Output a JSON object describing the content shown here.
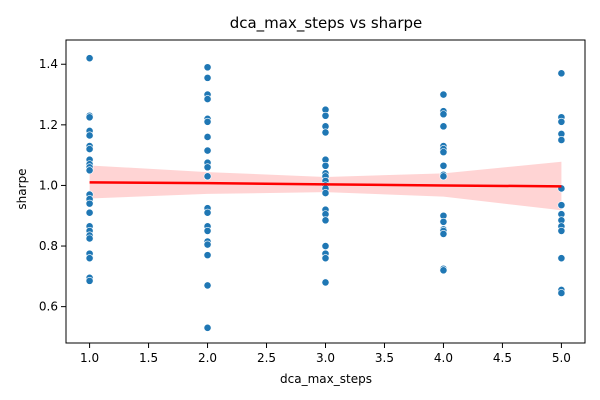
{
  "chart_data": {
    "type": "scatter",
    "title": "dca_max_steps vs sharpe",
    "xlabel": "dca_max_steps",
    "ylabel": "sharpe",
    "xlim": [
      0.8,
      5.2
    ],
    "ylim": [
      0.48,
      1.48
    ],
    "xticks": [
      "1.0",
      "1.5",
      "2.0",
      "2.5",
      "3.0",
      "3.5",
      "4.0",
      "4.5",
      "5.0"
    ],
    "yticks": [
      "0.6",
      "0.8",
      "1.0",
      "1.2",
      "1.4"
    ],
    "grid": false,
    "point_color": "#1f77b4",
    "points": [
      {
        "x": 1,
        "y": 1.42
      },
      {
        "x": 1,
        "y": 1.23
      },
      {
        "x": 1,
        "y": 1.225
      },
      {
        "x": 1,
        "y": 1.18
      },
      {
        "x": 1,
        "y": 1.165
      },
      {
        "x": 1,
        "y": 1.13
      },
      {
        "x": 1,
        "y": 1.12
      },
      {
        "x": 1,
        "y": 1.085
      },
      {
        "x": 1,
        "y": 1.07
      },
      {
        "x": 1,
        "y": 1.06
      },
      {
        "x": 1,
        "y": 1.05
      },
      {
        "x": 1,
        "y": 0.97
      },
      {
        "x": 1,
        "y": 0.955
      },
      {
        "x": 1,
        "y": 0.94
      },
      {
        "x": 1,
        "y": 0.91
      },
      {
        "x": 1,
        "y": 0.865
      },
      {
        "x": 1,
        "y": 0.85
      },
      {
        "x": 1,
        "y": 0.835
      },
      {
        "x": 1,
        "y": 0.825
      },
      {
        "x": 1,
        "y": 0.775
      },
      {
        "x": 1,
        "y": 0.76
      },
      {
        "x": 1,
        "y": 0.695
      },
      {
        "x": 1,
        "y": 0.685
      },
      {
        "x": 2,
        "y": 1.39
      },
      {
        "x": 2,
        "y": 1.355
      },
      {
        "x": 2,
        "y": 1.3
      },
      {
        "x": 2,
        "y": 1.285
      },
      {
        "x": 2,
        "y": 1.22
      },
      {
        "x": 2,
        "y": 1.21
      },
      {
        "x": 2,
        "y": 1.16
      },
      {
        "x": 2,
        "y": 1.115
      },
      {
        "x": 2,
        "y": 1.075
      },
      {
        "x": 2,
        "y": 1.06
      },
      {
        "x": 2,
        "y": 1.03
      },
      {
        "x": 2,
        "y": 0.925
      },
      {
        "x": 2,
        "y": 0.91
      },
      {
        "x": 2,
        "y": 0.865
      },
      {
        "x": 2,
        "y": 0.85
      },
      {
        "x": 2,
        "y": 0.815
      },
      {
        "x": 2,
        "y": 0.805
      },
      {
        "x": 2,
        "y": 0.77
      },
      {
        "x": 2,
        "y": 0.67
      },
      {
        "x": 2,
        "y": 0.53
      },
      {
        "x": 3,
        "y": 1.25
      },
      {
        "x": 3,
        "y": 1.23
      },
      {
        "x": 3,
        "y": 1.195
      },
      {
        "x": 3,
        "y": 1.175
      },
      {
        "x": 3,
        "y": 1.085
      },
      {
        "x": 3,
        "y": 1.065
      },
      {
        "x": 3,
        "y": 1.04
      },
      {
        "x": 3,
        "y": 1.03
      },
      {
        "x": 3,
        "y": 1.015
      },
      {
        "x": 3,
        "y": 1.0
      },
      {
        "x": 3,
        "y": 0.99
      },
      {
        "x": 3,
        "y": 0.975
      },
      {
        "x": 3,
        "y": 0.92
      },
      {
        "x": 3,
        "y": 0.905
      },
      {
        "x": 3,
        "y": 0.885
      },
      {
        "x": 3,
        "y": 0.8
      },
      {
        "x": 3,
        "y": 0.775
      },
      {
        "x": 3,
        "y": 0.76
      },
      {
        "x": 3,
        "y": 0.68
      },
      {
        "x": 4,
        "y": 1.3
      },
      {
        "x": 4,
        "y": 1.245
      },
      {
        "x": 4,
        "y": 1.235
      },
      {
        "x": 4,
        "y": 1.195
      },
      {
        "x": 4,
        "y": 1.13
      },
      {
        "x": 4,
        "y": 1.12
      },
      {
        "x": 4,
        "y": 1.11
      },
      {
        "x": 4,
        "y": 1.065
      },
      {
        "x": 4,
        "y": 1.035
      },
      {
        "x": 4,
        "y": 1.03
      },
      {
        "x": 4,
        "y": 0.9
      },
      {
        "x": 4,
        "y": 0.88
      },
      {
        "x": 4,
        "y": 0.855
      },
      {
        "x": 4,
        "y": 0.85
      },
      {
        "x": 4,
        "y": 0.84
      },
      {
        "x": 4,
        "y": 0.725
      },
      {
        "x": 4,
        "y": 0.72
      },
      {
        "x": 5,
        "y": 1.37
      },
      {
        "x": 5,
        "y": 1.225
      },
      {
        "x": 5,
        "y": 1.21
      },
      {
        "x": 5,
        "y": 1.17
      },
      {
        "x": 5,
        "y": 1.15
      },
      {
        "x": 5,
        "y": 0.99
      },
      {
        "x": 5,
        "y": 0.935
      },
      {
        "x": 5,
        "y": 0.905
      },
      {
        "x": 5,
        "y": 0.885
      },
      {
        "x": 5,
        "y": 0.865
      },
      {
        "x": 5,
        "y": 0.85
      },
      {
        "x": 5,
        "y": 0.76
      },
      {
        "x": 5,
        "y": 0.655
      },
      {
        "x": 5,
        "y": 0.645
      }
    ],
    "regression": {
      "color": "#ff0000",
      "band_color": "#ffcccc",
      "x": [
        1.0,
        2.0,
        3.0,
        4.0,
        5.0
      ],
      "y": [
        1.01,
        1.0075,
        1.0035,
        1.0,
        0.997
      ],
      "ci_lower": [
        0.957,
        0.972,
        0.978,
        0.963,
        0.918
      ],
      "ci_upper": [
        1.066,
        1.044,
        1.028,
        1.04,
        1.078
      ]
    }
  }
}
